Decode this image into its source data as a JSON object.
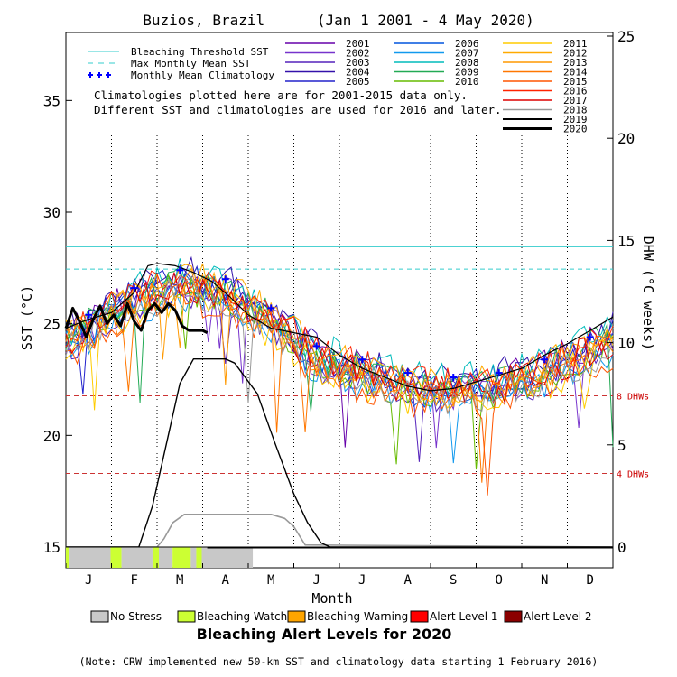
{
  "chart_data": {
    "type": "line",
    "title": "Buzios, Brazil      (Jan 1 2001 - 4 May 2020)",
    "xlabel": "Month",
    "ylabel_left": "SST (°C)",
    "ylabel_right": "DHW (°C weeks)",
    "months": [
      "J",
      "F",
      "M",
      "A",
      "M",
      "J",
      "J",
      "A",
      "S",
      "O",
      "N",
      "D"
    ],
    "left_axis": {
      "min": 15,
      "max": 39,
      "ticks": [
        "15",
        "20",
        "25",
        "30",
        "35"
      ]
    },
    "right_axis": {
      "min": 0,
      "max": 25,
      "ticks": [
        "0",
        "5",
        "10",
        "15",
        "20",
        "25"
      ]
    },
    "bleaching_threshold_sst": 28.45,
    "max_monthly_mean_sst": 27.45,
    "dhw_markers": [
      {
        "label": "8 DHWs",
        "dhw": 7.4
      },
      {
        "label": "4 DHWs",
        "dhw": 3.6
      }
    ],
    "legend_lines": [
      {
        "label": "Bleaching Threshold SST",
        "color": "#33cccc",
        "style": "solid"
      },
      {
        "label": "Max Monthly Mean SST",
        "color": "#33cccc",
        "style": "dashed"
      },
      {
        "label": "Monthly Mean Climatology",
        "color": "#0000ff",
        "style": "plus"
      }
    ],
    "note_lines": [
      "Climatologies plotted here are for 2001-2015 data only.",
      "Different SST and climatologies are used for 2016 and later."
    ],
    "monthly_mean_climatology": [
      25.4,
      26.6,
      27.4,
      27.0,
      25.7,
      24.0,
      23.4,
      22.8,
      22.6,
      22.8,
      23.4,
      24.4
    ],
    "year_colors": [
      {
        "year": "2001",
        "color": "#6600aa"
      },
      {
        "year": "2002",
        "color": "#7733cc"
      },
      {
        "year": "2003",
        "color": "#5522bb"
      },
      {
        "year": "2004",
        "color": "#3311aa"
      },
      {
        "year": "2005",
        "color": "#2222cc"
      },
      {
        "year": "2006",
        "color": "#0055dd"
      },
      {
        "year": "2007",
        "color": "#1199ee"
      },
      {
        "year": "2008",
        "color": "#00bbbb"
      },
      {
        "year": "2009",
        "color": "#22aa55"
      },
      {
        "year": "2010",
        "color": "#66bb00"
      },
      {
        "year": "2011",
        "color": "#ffcc00"
      },
      {
        "year": "2012",
        "color": "#ffaa00"
      },
      {
        "year": "2013",
        "color": "#ff9900"
      },
      {
        "year": "2014",
        "color": "#ff7700"
      },
      {
        "year": "2015",
        "color": "#ff5500"
      },
      {
        "year": "2016",
        "color": "#ff2200"
      },
      {
        "year": "2017",
        "color": "#dd0000"
      },
      {
        "year": "2018",
        "color": "#999999"
      },
      {
        "year": "2019",
        "color": "#000000"
      },
      {
        "year": "2020",
        "color": "#000000"
      }
    ],
    "sst_2020": {
      "month_pos": [
        0.0,
        0.15,
        0.3,
        0.45,
        0.6,
        0.75,
        0.9,
        1.05,
        1.2,
        1.35,
        1.5,
        1.65,
        1.8,
        1.95,
        2.1,
        2.25,
        2.4,
        2.55,
        2.7,
        2.85,
        3.0,
        3.1
      ],
      "values": [
        24.8,
        25.7,
        25.1,
        24.4,
        25.2,
        25.8,
        25.0,
        25.4,
        24.9,
        25.9,
        25.1,
        24.7,
        25.6,
        25.9,
        25.5,
        25.9,
        25.6,
        24.9,
        24.7,
        24.7,
        24.7,
        24.6
      ]
    },
    "sst_2019_max": {
      "month_pos": [
        0.0,
        0.5,
        1.0,
        1.5,
        1.8,
        2.0,
        2.4,
        2.8,
        3.2,
        3.6,
        4.0,
        4.5,
        5.0,
        5.5,
        6.0,
        6.5,
        7.0,
        7.5,
        8.0,
        8.5,
        9.0,
        9.5,
        10.0,
        10.5,
        11.0,
        11.5,
        12.0
      ],
      "values": [
        24.8,
        25.2,
        25.5,
        26.4,
        27.6,
        27.7,
        27.6,
        27.3,
        26.9,
        26.2,
        25.4,
        24.8,
        24.6,
        24.4,
        23.6,
        23.0,
        22.6,
        22.2,
        22.0,
        22.1,
        22.4,
        22.7,
        23.0,
        23.6,
        24.1,
        24.7,
        25.3
      ]
    },
    "dhw_2019": {
      "month_pos": [
        0.0,
        1.6,
        1.9,
        2.2,
        2.5,
        2.8,
        3.2,
        3.5,
        3.7,
        4.2,
        4.6,
        5.0,
        5.3,
        5.6,
        5.8,
        12.0
      ],
      "values": [
        0,
        0,
        2.0,
        5.0,
        8.0,
        9.2,
        9.2,
        9.2,
        9.0,
        7.5,
        5.0,
        2.6,
        1.2,
        0.2,
        0,
        0
      ]
    },
    "dhw_2018": {
      "month_pos": [
        0.0,
        2.0,
        2.15,
        2.35,
        2.6,
        3.0,
        3.5,
        4.0,
        4.5,
        4.8,
        5.0,
        5.25,
        12.0
      ],
      "values": [
        0,
        0,
        0.4,
        1.2,
        1.6,
        1.6,
        1.6,
        1.6,
        1.6,
        1.4,
        1.0,
        0.1,
        0
      ]
    },
    "alert_bar_segments": [
      {
        "from": 0.0,
        "to": 0.06,
        "level": "Bleaching Watch"
      },
      {
        "from": 0.06,
        "to": 0.98,
        "level": "No Stress"
      },
      {
        "from": 0.98,
        "to": 1.22,
        "level": "Bleaching Watch"
      },
      {
        "from": 1.22,
        "to": 1.9,
        "level": "No Stress"
      },
      {
        "from": 1.9,
        "to": 2.04,
        "level": "Bleaching Watch"
      },
      {
        "from": 2.04,
        "to": 2.34,
        "level": "No Stress"
      },
      {
        "from": 2.34,
        "to": 2.74,
        "level": "Bleaching Watch"
      },
      {
        "from": 2.74,
        "to": 2.86,
        "level": "No Stress"
      },
      {
        "from": 2.86,
        "to": 2.98,
        "level": "Bleaching Watch"
      },
      {
        "from": 2.98,
        "to": 4.1,
        "level": "No Stress"
      }
    ],
    "alert_legend": [
      {
        "label": "No Stress",
        "color": "#c8c8c8"
      },
      {
        "label": "Bleaching Watch",
        "color": "#ccff33"
      },
      {
        "label": "Bleaching Warning",
        "color": "#ffa500"
      },
      {
        "label": "Alert Level 1",
        "color": "#ff0000"
      },
      {
        "label": "Alert Level 2",
        "color": "#8b0000"
      }
    ],
    "alert_title": "Bleaching Alert Levels for 2020",
    "footnote": "(Note: CRW implemented new 50-km SST and climatology data starting 1 February 2016)"
  }
}
